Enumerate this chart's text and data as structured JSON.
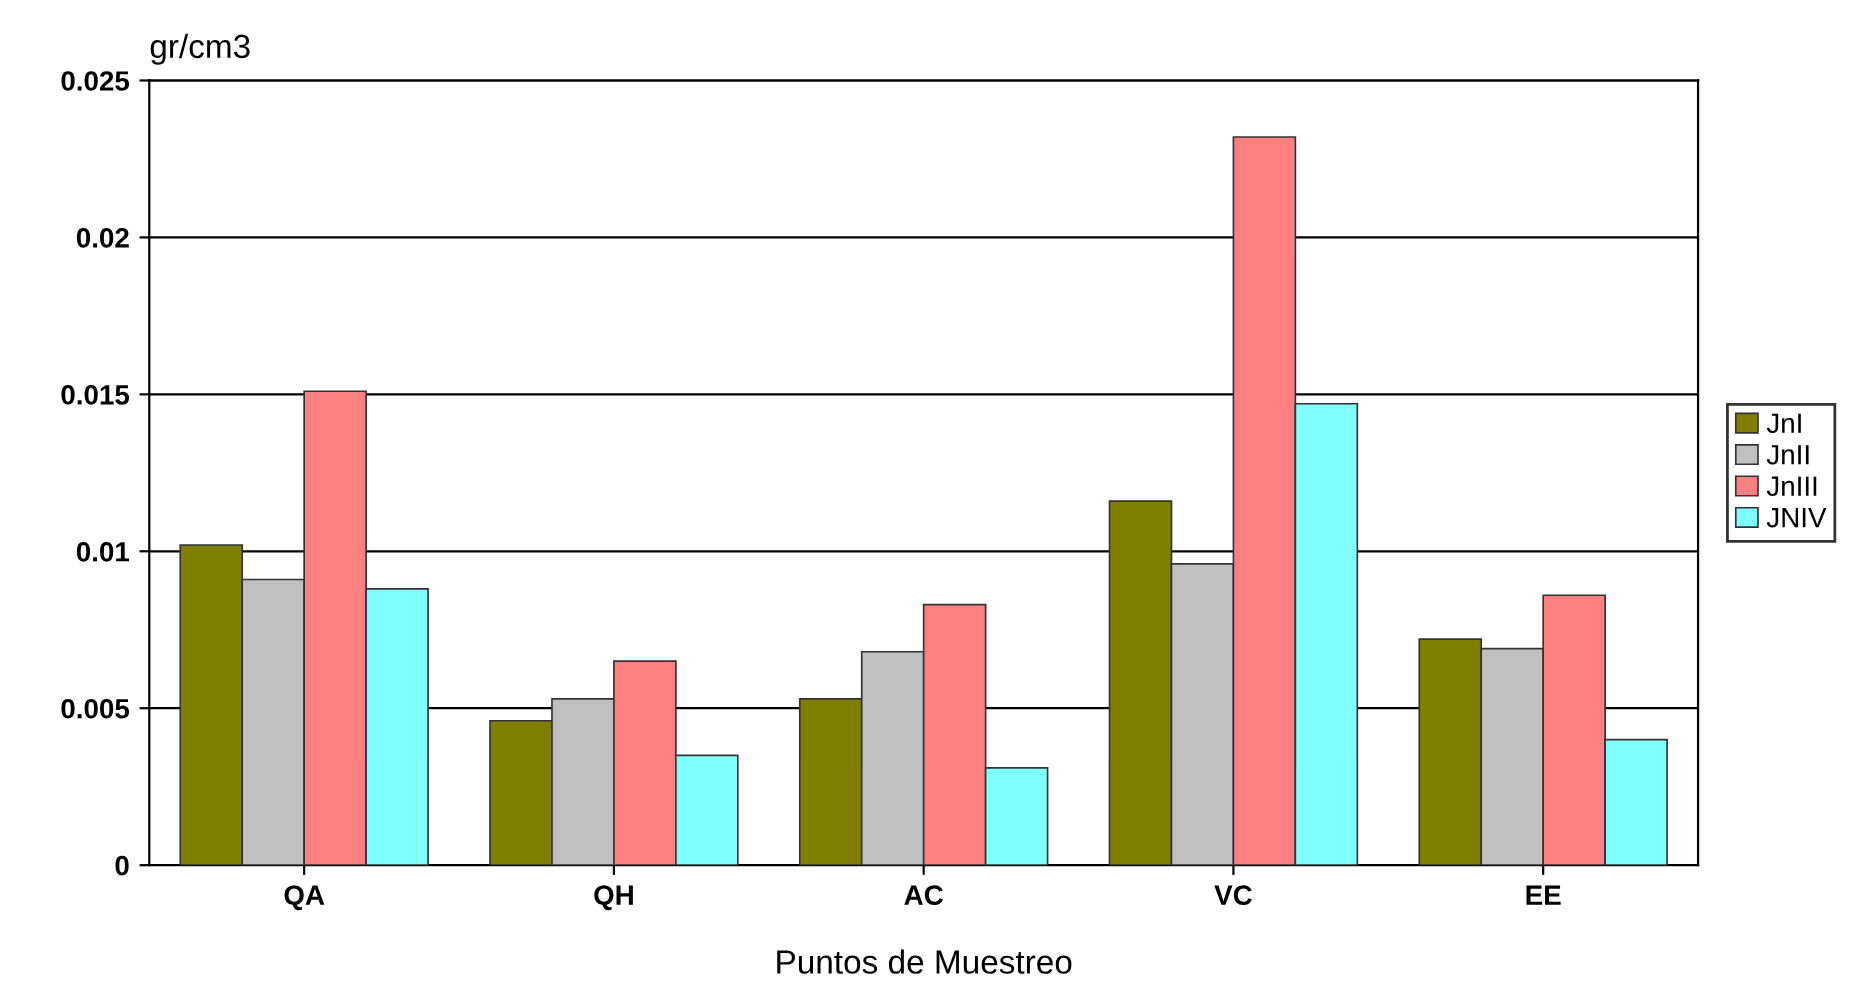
{
  "chart_data": {
    "type": "bar",
    "ylabel": "gr/cm3",
    "xlabel": "Puntos de Muestreo",
    "categories": [
      "QA",
      "QH",
      "AC",
      "VC",
      "EE"
    ],
    "series": [
      {
        "name": "JnI",
        "color": "#808000",
        "values": [
          0.0102,
          0.0046,
          0.0053,
          0.0116,
          0.0072
        ]
      },
      {
        "name": "JnII",
        "color": "#c0c0c0",
        "values": [
          0.0091,
          0.0053,
          0.0068,
          0.0096,
          0.0069
        ]
      },
      {
        "name": "JnIII",
        "color": "#ff8080",
        "values": [
          0.0151,
          0.0065,
          0.0083,
          0.0232,
          0.0086
        ]
      },
      {
        "name": "JNIV",
        "color": "#80ffff",
        "values": [
          0.0088,
          0.0035,
          0.0031,
          0.0147,
          0.004
        ]
      }
    ],
    "ylim": [
      0,
      0.025
    ],
    "yticks": [
      0,
      0.005,
      0.01,
      0.015,
      0.02,
      0.025
    ],
    "grid": "y",
    "legend": "right"
  }
}
